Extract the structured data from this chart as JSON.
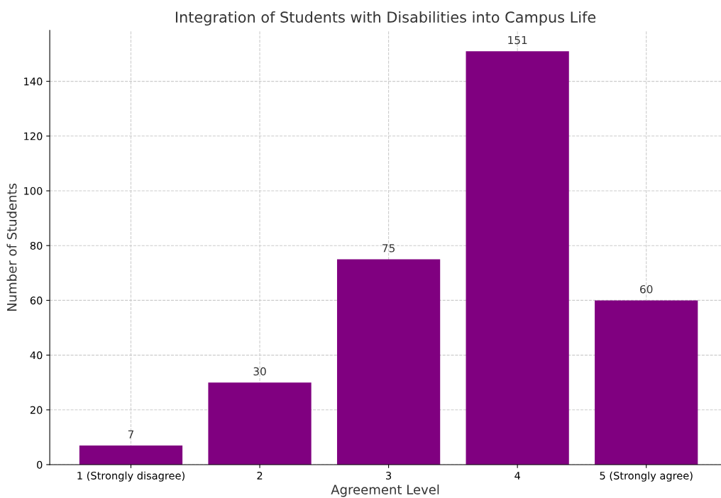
{
  "chart_data": {
    "type": "bar",
    "title": "Integration of Students with Disabilities into Campus Life",
    "xlabel": "Agreement Level",
    "ylabel": "Number of Students",
    "categories": [
      "1 (Strongly disagree)",
      "2",
      "3",
      "4",
      "5 (Strongly agree)"
    ],
    "values": [
      7,
      30,
      75,
      151,
      60
    ],
    "color": "#800080",
    "ylim": [
      0,
      158.6
    ],
    "yticks": [
      0,
      20,
      40,
      60,
      80,
      100,
      120,
      140
    ],
    "grid": true,
    "data_labels": true
  }
}
